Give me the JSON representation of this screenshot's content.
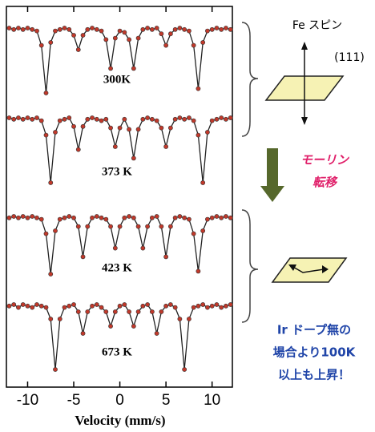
{
  "chart_data": {
    "type": "line",
    "x": [
      -12,
      -11.5,
      -11,
      -10.5,
      -10,
      -9.5,
      -9,
      -8.5,
      -8,
      -7.5,
      -7,
      -6.5,
      -6,
      -5.5,
      -5,
      -4.5,
      -4,
      -3.5,
      -3,
      -2.5,
      -2,
      -1.5,
      -1,
      -0.5,
      0,
      0.5,
      1,
      1.5,
      2,
      2.5,
      3,
      3.5,
      4,
      4.5,
      5,
      5.5,
      6,
      6.5,
      7,
      7.5,
      8,
      8.5,
      9,
      9.5,
      10,
      10.5,
      11,
      11.5,
      12
    ],
    "series": [
      {
        "name": "300K",
        "color": "#c0392b",
        "values": [
          1.0,
          0.99,
          1.0,
          0.99,
          1.0,
          0.99,
          0.98,
          0.88,
          0.55,
          0.9,
          0.98,
          0.99,
          1.0,
          0.99,
          0.95,
          0.85,
          0.95,
          0.99,
          1.0,
          0.99,
          0.98,
          0.92,
          0.72,
          0.93,
          0.98,
          0.97,
          0.92,
          0.72,
          0.93,
          0.99,
          1.0,
          0.99,
          1.0,
          0.96,
          0.88,
          0.96,
          0.99,
          1.0,
          0.99,
          0.98,
          0.88,
          0.58,
          0.9,
          0.98,
          0.99,
          1.0,
          0.99,
          1.0,
          0.99
        ]
      },
      {
        "name": "373 K",
        "color": "#c0392b",
        "values": [
          1.0,
          0.99,
          1.0,
          0.99,
          1.0,
          0.99,
          1.0,
          0.98,
          0.88,
          0.55,
          0.9,
          0.98,
          0.99,
          1.0,
          0.94,
          0.78,
          0.94,
          0.99,
          1.0,
          0.99,
          0.98,
          0.99,
          0.93,
          0.8,
          0.93,
          0.99,
          0.92,
          0.72,
          0.92,
          0.99,
          1.0,
          0.99,
          0.98,
          0.93,
          0.8,
          0.93,
          0.99,
          1.0,
          0.99,
          1.0,
          0.98,
          0.88,
          0.55,
          0.9,
          0.98,
          0.99,
          1.0,
          0.99,
          1.0
        ]
      },
      {
        "name": "423 K",
        "color": "#c0392b",
        "values": [
          0.99,
          1.0,
          0.99,
          1.0,
          0.99,
          1.0,
          0.99,
          0.98,
          0.88,
          0.6,
          0.9,
          0.98,
          0.99,
          1.0,
          0.99,
          0.93,
          0.72,
          0.93,
          0.99,
          1.0,
          0.99,
          0.98,
          0.93,
          0.78,
          0.93,
          0.99,
          1.0,
          0.99,
          0.93,
          0.78,
          0.93,
          0.99,
          1.0,
          0.93,
          0.72,
          0.93,
          0.99,
          1.0,
          0.99,
          0.98,
          0.88,
          0.62,
          0.9,
          0.98,
          0.99,
          1.0,
          0.99,
          1.0,
          0.99
        ]
      },
      {
        "name": "673 K",
        "color": "#c0392b",
        "values": [
          0.99,
          1.0,
          0.98,
          1.0,
          0.99,
          0.98,
          1.0,
          0.99,
          0.98,
          0.9,
          0.55,
          0.9,
          0.98,
          0.99,
          1.0,
          0.95,
          0.8,
          0.95,
          0.99,
          1.0,
          0.98,
          0.95,
          0.85,
          0.95,
          0.99,
          1.0,
          0.95,
          0.85,
          0.95,
          0.99,
          1.0,
          0.95,
          0.8,
          0.95,
          0.99,
          1.0,
          0.98,
          0.9,
          0.55,
          0.9,
          0.98,
          0.99,
          1.0,
          0.98,
          0.99,
          1.0,
          0.98,
          0.99,
          1.0
        ]
      }
    ],
    "xlim": [
      -12.3,
      12.2
    ],
    "xticks": [
      -10,
      -5,
      0,
      5,
      10
    ],
    "xlabel": "Velocity (mm/s)",
    "annotations": [
      "Fe スピン",
      "(111)",
      "モーリン",
      "転移",
      "Ir ドープ無の",
      "場合より100K",
      "以上も上昇！"
    ]
  }
}
